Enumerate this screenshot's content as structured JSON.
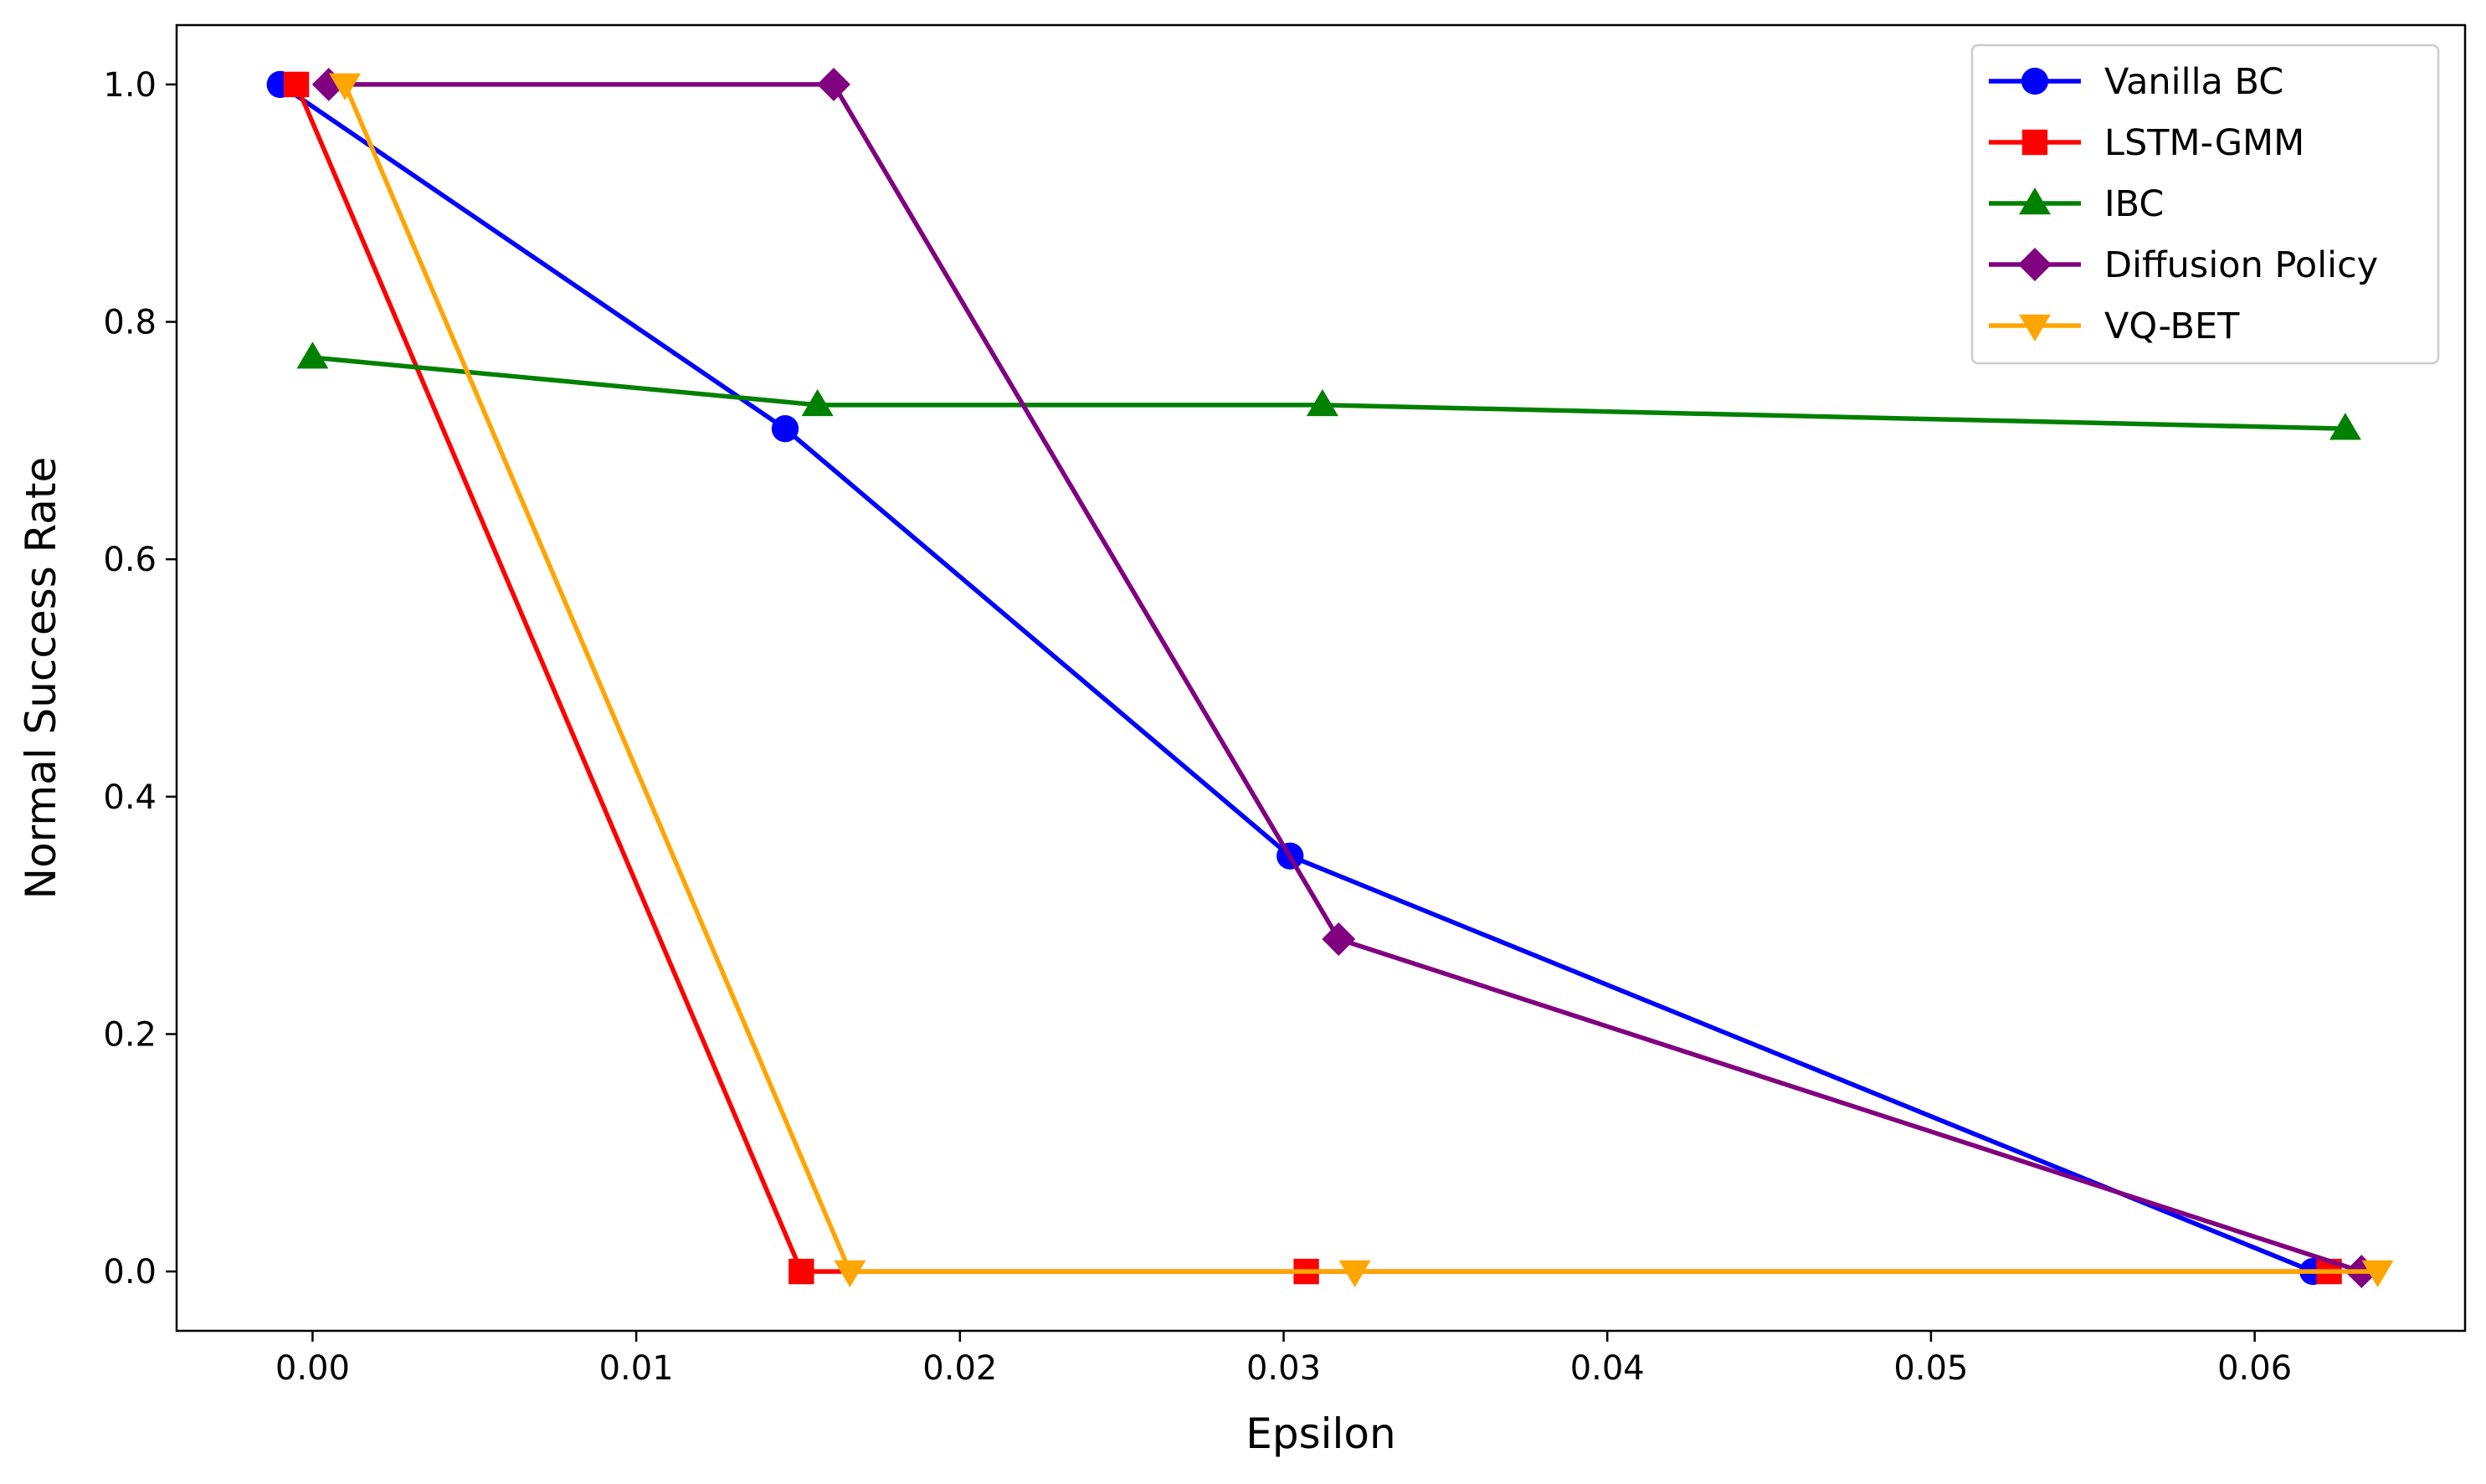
{
  "chart_data": {
    "type": "line",
    "title": "",
    "xlabel": "Epsilon",
    "ylabel": "Normal Success Rate",
    "xlim": [
      -0.0042,
      0.0665
    ],
    "ylim": [
      -0.05,
      1.05
    ],
    "xticks": [
      0.0,
      0.01,
      0.02,
      0.03,
      0.04,
      0.05,
      0.06
    ],
    "xtick_labels": [
      "0.00",
      "0.01",
      "0.02",
      "0.03",
      "0.04",
      "0.05",
      "0.06"
    ],
    "yticks": [
      0.0,
      0.2,
      0.4,
      0.6,
      0.8,
      1.0
    ],
    "ytick_labels": [
      "0.0",
      "0.2",
      "0.4",
      "0.6",
      "0.8",
      "1.0"
    ],
    "grid": false,
    "legend_position": "top-right",
    "series": [
      {
        "name": "Vanilla BC",
        "color": "#0000ff",
        "marker": "circle",
        "x": [
          -0.001,
          0.0146,
          0.0302,
          0.0618
        ],
        "y": [
          1.0,
          0.71,
          0.35,
          0.0
        ]
      },
      {
        "name": "LSTM-GMM",
        "color": "#ff0000",
        "marker": "square",
        "x": [
          -0.0005,
          0.0151,
          0.0307,
          0.0623
        ],
        "y": [
          1.0,
          0.0,
          0.0,
          0.0
        ]
      },
      {
        "name": "IBC",
        "color": "#008000",
        "marker": "triangle-up",
        "x": [
          0.0,
          0.0156,
          0.0312,
          0.0628
        ],
        "y": [
          0.77,
          0.73,
          0.73,
          0.71
        ]
      },
      {
        "name": "Diffusion Policy",
        "color": "#800080",
        "marker": "diamond",
        "x": [
          0.0005,
          0.0161,
          0.0317,
          0.0633
        ],
        "y": [
          1.0,
          1.0,
          0.28,
          0.0
        ]
      },
      {
        "name": "VQ-BET",
        "color": "#ffa500",
        "marker": "triangle-down",
        "x": [
          0.001,
          0.0166,
          0.0322,
          0.0638
        ],
        "y": [
          1.0,
          0.0,
          0.0,
          0.0
        ]
      }
    ]
  }
}
